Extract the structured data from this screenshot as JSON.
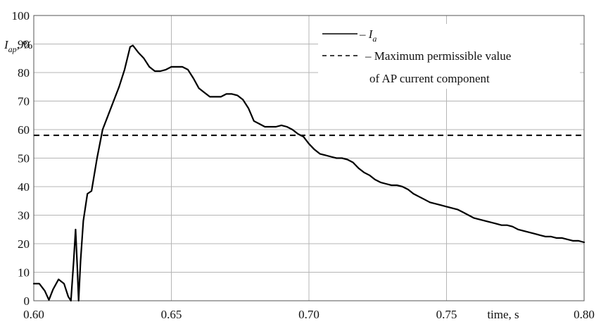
{
  "chart_data": {
    "type": "line",
    "title": "",
    "xlabel": "time, s",
    "ylabel": {
      "base": "I",
      "sub": "ap",
      "suffix": ", %"
    },
    "xlim": [
      0.6,
      0.8
    ],
    "ylim": [
      0,
      100
    ],
    "x_ticks": [
      "0.60",
      "0.65",
      "0.70",
      "0.75",
      "0.80"
    ],
    "y_ticks": [
      "0",
      "10",
      "20",
      "30",
      "40",
      "50",
      "60",
      "70",
      "80",
      "90",
      "100"
    ],
    "grid": true,
    "legend_position": "top-right",
    "series": [
      {
        "name": {
          "base": "I",
          "sub": "a"
        },
        "legend_text": "– ",
        "style": "solid",
        "color": "#000000",
        "points": [
          [
            0.6,
            6.0
          ],
          [
            0.602,
            6.0
          ],
          [
            0.604,
            3.5
          ],
          [
            0.6055,
            0.3
          ],
          [
            0.607,
            4.0
          ],
          [
            0.609,
            7.5
          ],
          [
            0.611,
            6.0
          ],
          [
            0.6125,
            1.5
          ],
          [
            0.6135,
            0.0
          ],
          [
            0.6145,
            14.0
          ],
          [
            0.6152,
            25.0
          ],
          [
            0.6158,
            12.0
          ],
          [
            0.6163,
            0.0
          ],
          [
            0.617,
            14.0
          ],
          [
            0.618,
            28.0
          ],
          [
            0.6195,
            37.5
          ],
          [
            0.621,
            38.5
          ],
          [
            0.623,
            50.0
          ],
          [
            0.625,
            60.0
          ],
          [
            0.627,
            65.0
          ],
          [
            0.629,
            70.0
          ],
          [
            0.631,
            75.0
          ],
          [
            0.633,
            81.0
          ],
          [
            0.635,
            89.0
          ],
          [
            0.636,
            89.5
          ],
          [
            0.638,
            87.0
          ],
          [
            0.64,
            85.0
          ],
          [
            0.642,
            82.0
          ],
          [
            0.644,
            80.5
          ],
          [
            0.646,
            80.5
          ],
          [
            0.648,
            81.0
          ],
          [
            0.65,
            82.0
          ],
          [
            0.652,
            82.0
          ],
          [
            0.654,
            82.0
          ],
          [
            0.656,
            81.0
          ],
          [
            0.658,
            78.0
          ],
          [
            0.66,
            74.5
          ],
          [
            0.662,
            73.0
          ],
          [
            0.664,
            71.5
          ],
          [
            0.666,
            71.5
          ],
          [
            0.668,
            71.5
          ],
          [
            0.67,
            72.5
          ],
          [
            0.672,
            72.5
          ],
          [
            0.674,
            72.0
          ],
          [
            0.676,
            70.5
          ],
          [
            0.678,
            67.5
          ],
          [
            0.68,
            63.0
          ],
          [
            0.682,
            62.0
          ],
          [
            0.684,
            61.0
          ],
          [
            0.686,
            61.0
          ],
          [
            0.688,
            61.0
          ],
          [
            0.69,
            61.5
          ],
          [
            0.692,
            61.0
          ],
          [
            0.694,
            60.0
          ],
          [
            0.696,
            58.5
          ],
          [
            0.698,
            57.5
          ],
          [
            0.7,
            55.0
          ],
          [
            0.702,
            53.0
          ],
          [
            0.704,
            51.5
          ],
          [
            0.706,
            51.0
          ],
          [
            0.708,
            50.5
          ],
          [
            0.71,
            50.0
          ],
          [
            0.712,
            50.0
          ],
          [
            0.714,
            49.5
          ],
          [
            0.716,
            48.5
          ],
          [
            0.718,
            46.5
          ],
          [
            0.72,
            45.0
          ],
          [
            0.722,
            44.0
          ],
          [
            0.724,
            42.5
          ],
          [
            0.726,
            41.5
          ],
          [
            0.728,
            41.0
          ],
          [
            0.73,
            40.5
          ],
          [
            0.732,
            40.5
          ],
          [
            0.734,
            40.0
          ],
          [
            0.736,
            39.0
          ],
          [
            0.738,
            37.5
          ],
          [
            0.74,
            36.5
          ],
          [
            0.742,
            35.5
          ],
          [
            0.744,
            34.5
          ],
          [
            0.746,
            34.0
          ],
          [
            0.748,
            33.5
          ],
          [
            0.75,
            33.0
          ],
          [
            0.752,
            32.5
          ],
          [
            0.754,
            32.0
          ],
          [
            0.756,
            31.0
          ],
          [
            0.758,
            30.0
          ],
          [
            0.76,
            29.0
          ],
          [
            0.762,
            28.5
          ],
          [
            0.764,
            28.0
          ],
          [
            0.766,
            27.5
          ],
          [
            0.768,
            27.0
          ],
          [
            0.77,
            26.5
          ],
          [
            0.772,
            26.5
          ],
          [
            0.774,
            26.0
          ],
          [
            0.776,
            25.0
          ],
          [
            0.778,
            24.5
          ],
          [
            0.78,
            24.0
          ],
          [
            0.782,
            23.5
          ],
          [
            0.784,
            23.0
          ],
          [
            0.786,
            22.5
          ],
          [
            0.788,
            22.5
          ],
          [
            0.79,
            22.0
          ],
          [
            0.792,
            22.0
          ],
          [
            0.794,
            21.5
          ],
          [
            0.796,
            21.0
          ],
          [
            0.798,
            21.0
          ],
          [
            0.8,
            20.5
          ]
        ]
      },
      {
        "name": "– Maximum permissible value of AP current component",
        "legend_lines": [
          "– Maximum permissible value",
          "of AP current component"
        ],
        "style": "dashed",
        "color": "#000000",
        "points": [
          [
            0.6,
            58.0
          ],
          [
            0.8,
            58.0
          ]
        ]
      }
    ]
  }
}
